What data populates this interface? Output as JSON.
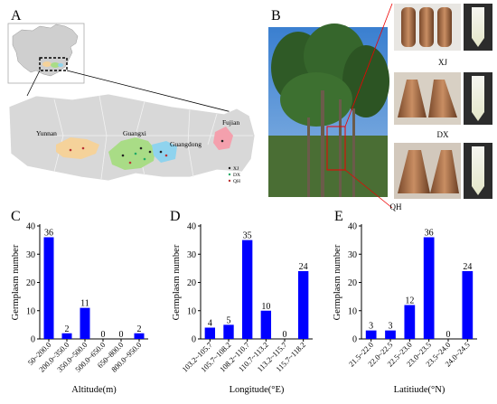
{
  "panels": {
    "A": {
      "letter": "A",
      "region_labels": [
        "Yunnan",
        "Guangxi",
        "Guangdong",
        "Fujian"
      ],
      "legend": [
        "XJ",
        "DX",
        "QH"
      ],
      "colors": {
        "yunnan": "#f5d29a",
        "guangxi": "#a9dc86",
        "guangdong": "#8fd3ee",
        "fujian": "#f4a0ad",
        "inset_box": "#000000"
      }
    },
    "B": {
      "letter": "B",
      "sample_labels": [
        "XJ",
        "DX",
        "QH"
      ]
    },
    "C": {
      "letter": "C"
    },
    "D": {
      "letter": "D"
    },
    "E": {
      "letter": "E"
    }
  },
  "chart_data": [
    {
      "type": "bar",
      "panel": "C",
      "categories": [
        "50~200.0",
        "200.0~350.0",
        "350.0~500.0",
        "500.0~650.0",
        "650~800.0",
        "800.0~950.0"
      ],
      "values": [
        36,
        2,
        11,
        0,
        0,
        2
      ],
      "xlabel": "Altitude(m)",
      "ylabel": "Germplasm number",
      "ylim": [
        0,
        40
      ],
      "yticks": [
        0,
        10,
        20,
        30,
        40
      ],
      "color": "#0000ff"
    },
    {
      "type": "bar",
      "panel": "D",
      "categories": [
        "103.2~105.7",
        "105.7~108.2",
        "108.2~110.7",
        "110.7~113.2",
        "113.2~115.7",
        "115.7~118.2"
      ],
      "values": [
        4,
        5,
        35,
        10,
        0,
        24
      ],
      "xlabel": "Longitude(°E)",
      "ylabel": "Germplasm number",
      "ylim": [
        0,
        40
      ],
      "yticks": [
        0,
        10,
        20,
        30,
        40
      ],
      "color": "#0000ff"
    },
    {
      "type": "bar",
      "panel": "E",
      "categories": [
        "21.5~22.0",
        "22.0~22.5",
        "22.5~23.0",
        "23.0~23.5",
        "23.5~24.0",
        "24.0~24.5"
      ],
      "values": [
        3,
        3,
        12,
        36,
        0,
        24
      ],
      "xlabel": "Latitiude(°N)",
      "ylabel": "Germplasm number",
      "ylim": [
        0,
        40
      ],
      "yticks": [
        0,
        10,
        20,
        30,
        40
      ],
      "color": "#0000ff"
    }
  ]
}
